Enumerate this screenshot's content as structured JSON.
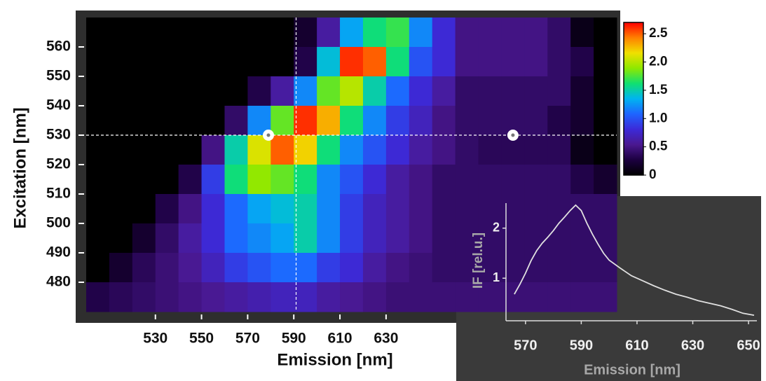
{
  "chart_data": [
    {
      "type": "heatmap",
      "x_label": "Emission [nm]",
      "y_label": "Excitation [nm]",
      "x": [
        505,
        515,
        525,
        535,
        545,
        555,
        565,
        575,
        585,
        595,
        605,
        615,
        625,
        635,
        645,
        655,
        665,
        675,
        685,
        695,
        705,
        715,
        725
      ],
      "y": [
        565,
        555,
        545,
        535,
        525,
        515,
        505,
        495,
        485,
        475
      ],
      "z": [
        [
          0,
          0,
          0,
          0,
          0,
          0,
          0,
          0,
          0,
          0.2,
          0.6,
          1.3,
          1.6,
          1.7,
          1.2,
          0.8,
          0.5,
          0.5,
          0.5,
          0.5,
          0.4,
          0.1,
          0
        ],
        [
          0,
          0,
          0,
          0,
          0,
          0,
          0,
          0,
          0,
          0.3,
          1.4,
          2.6,
          2.5,
          1.6,
          1.0,
          0.8,
          0.5,
          0.5,
          0.5,
          0.5,
          0.4,
          0.3,
          0
        ],
        [
          0,
          0,
          0,
          0,
          0,
          0,
          0,
          0.3,
          0.6,
          1.2,
          1.8,
          2.0,
          1.5,
          1.1,
          0.8,
          0.6,
          0.4,
          0.4,
          0.4,
          0.4,
          0.4,
          0.2,
          0
        ],
        [
          0,
          0,
          0,
          0,
          0,
          0,
          0.4,
          1.2,
          1.8,
          2.6,
          2.3,
          1.6,
          1.2,
          0.9,
          0.7,
          0.5,
          0.4,
          0.4,
          0.4,
          0.4,
          0.3,
          0.2,
          0
        ],
        [
          0,
          0,
          0,
          0,
          0,
          0.5,
          1.5,
          2.1,
          2.5,
          2.2,
          1.6,
          1.2,
          1.0,
          0.8,
          0.6,
          0.5,
          0.4,
          0.35,
          0.35,
          0.35,
          0.35,
          0.1,
          0
        ],
        [
          0,
          0,
          0,
          0,
          0.3,
          0.9,
          1.6,
          1.9,
          1.8,
          1.6,
          1.2,
          1.0,
          0.8,
          0.6,
          0.5,
          0.4,
          0.4,
          0.4,
          0.4,
          0.4,
          0.4,
          0.3,
          0.2
        ],
        [
          0,
          0,
          0,
          0.3,
          0.5,
          0.8,
          1.1,
          1.3,
          1.4,
          1.5,
          1.2,
          0.9,
          0.7,
          0.6,
          0.5,
          0.4,
          0.4,
          0.4,
          0.4,
          0.4,
          0.4,
          0.4,
          0.4
        ],
        [
          0,
          0,
          0.2,
          0.4,
          0.6,
          0.8,
          1.1,
          1.2,
          1.3,
          1.5,
          1.2,
          0.9,
          0.7,
          0.6,
          0.5,
          0.4,
          0.4,
          0.4,
          0.4,
          0.4,
          0.4,
          0.4,
          0.4
        ],
        [
          0,
          0.2,
          0.35,
          0.45,
          0.55,
          0.7,
          0.9,
          1.0,
          1.1,
          1.1,
          0.9,
          0.8,
          0.6,
          0.5,
          0.45,
          0.4,
          0.4,
          0.4,
          0.4,
          0.4,
          0.4,
          0.4,
          0.4
        ],
        [
          0.3,
          0.35,
          0.4,
          0.45,
          0.5,
          0.55,
          0.6,
          0.65,
          0.7,
          0.7,
          0.6,
          0.55,
          0.5,
          0.45,
          0.45,
          0.45,
          0.45,
          0.45,
          0.45,
          0.45,
          0.45,
          0.45,
          0.45
        ]
      ],
      "xlim": [
        500,
        730
      ],
      "ylim": [
        470,
        570
      ],
      "xticks": [
        530,
        550,
        570,
        590,
        610,
        630
      ],
      "yticks": [
        480,
        490,
        500,
        510,
        520,
        530,
        540,
        550,
        560
      ],
      "zlim": [
        0,
        2.7
      ],
      "zticks": [
        0,
        0.5,
        {
          "value": 1,
          "label": "1.0"
        },
        1.5,
        {
          "value": 2,
          "label": "2.0"
        },
        2.5
      ],
      "colormap": [
        "#000000",
        "#1c0040",
        "#4a1890",
        "#3c2ad8",
        "#1e64ff",
        "#00b4f0",
        "#10e070",
        "#8ee800",
        "#f0e000",
        "#ff8000",
        "#ff0000"
      ],
      "cursor": {
        "x": 591,
        "y": 530
      },
      "markers": [
        {
          "x": 579,
          "y": 530
        },
        {
          "x": 685,
          "y": 530
        }
      ]
    },
    {
      "type": "line",
      "x_label": "Emission [nm]",
      "y_label": "IF [rel.u.]",
      "x": [
        566,
        568,
        570,
        572,
        574,
        576,
        578,
        580,
        582,
        584,
        586,
        588,
        590,
        592,
        594,
        596,
        598,
        600,
        604,
        608,
        612,
        616,
        620,
        624,
        628,
        632,
        636,
        640,
        644,
        648,
        652
      ],
      "values": [
        0.68,
        0.88,
        1.1,
        1.35,
        1.55,
        1.7,
        1.82,
        1.95,
        2.1,
        2.22,
        2.35,
        2.46,
        2.35,
        2.1,
        1.88,
        1.68,
        1.5,
        1.36,
        1.2,
        1.05,
        0.95,
        0.85,
        0.76,
        0.68,
        0.62,
        0.55,
        0.5,
        0.45,
        0.38,
        0.3,
        0.26
      ],
      "color": "#e0e0e0",
      "xlim": [
        563,
        653
      ],
      "ylim": [
        0.15,
        2.5
      ],
      "xticks": [
        570,
        590,
        610,
        630,
        650
      ],
      "yticks": [
        1,
        2
      ]
    }
  ]
}
